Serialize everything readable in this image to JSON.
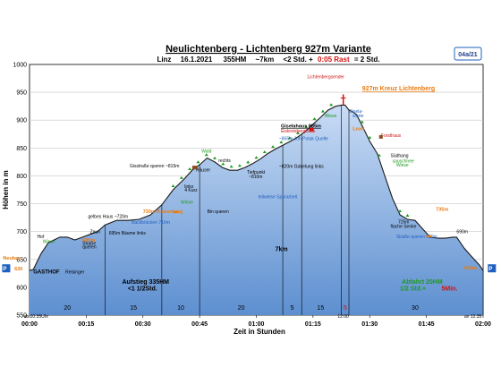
{
  "chart_data": {
    "type": "area",
    "title": "Neulichtenberg - Lichtenberg 927m Variante",
    "subtitle_parts": [
      "Linz",
      "16.1.2021",
      "355HM",
      "~7km",
      "<2 Std. +",
      "0:05 Rast",
      "= 2 Std."
    ],
    "badge": "04a/21",
    "xlabel": "Zeit in Stunden",
    "ylabel": "Höhen in m",
    "ylim": [
      550,
      1000
    ],
    "xlim_minutes": [
      0,
      120
    ],
    "y_ticks": [
      "550",
      "600",
      "650",
      "700",
      "750",
      "800",
      "850",
      "900",
      "950",
      "1000"
    ],
    "x_ticks": [
      {
        "minute": 0,
        "label": "00:00"
      },
      {
        "minute": 15,
        "label": "00:15"
      },
      {
        "minute": 30,
        "label": "00:30"
      },
      {
        "minute": 45,
        "label": "00:45"
      },
      {
        "minute": 60,
        "label": "01:00"
      },
      {
        "minute": 75,
        "label": "01:15"
      },
      {
        "minute": 90,
        "label": "01:30"
      },
      {
        "minute": 105,
        "label": "01:45"
      },
      {
        "minute": 120,
        "label": "02:00"
      }
    ],
    "series": [
      {
        "profile": [
          [
            0,
            630
          ],
          [
            1,
            632
          ],
          [
            3,
            660
          ],
          [
            5,
            680
          ],
          [
            8,
            690
          ],
          [
            10,
            690
          ],
          [
            12,
            685
          ],
          [
            14,
            690
          ],
          [
            16,
            695
          ],
          [
            18,
            700
          ],
          [
            20,
            712
          ],
          [
            23,
            720
          ],
          [
            26,
            720
          ],
          [
            29,
            722
          ],
          [
            32,
            730
          ],
          [
            35,
            748
          ],
          [
            38,
            775
          ],
          [
            41,
            795
          ],
          [
            43,
            810
          ],
          [
            45,
            820
          ],
          [
            47,
            832
          ],
          [
            49,
            825
          ],
          [
            51,
            815
          ],
          [
            53,
            810
          ],
          [
            55,
            810
          ],
          [
            57,
            815
          ],
          [
            59,
            822
          ],
          [
            61,
            830
          ],
          [
            63,
            840
          ],
          [
            65,
            848
          ],
          [
            67,
            855
          ],
          [
            69,
            862
          ],
          [
            71,
            870
          ],
          [
            73,
            880
          ],
          [
            75,
            893
          ],
          [
            77,
            905
          ],
          [
            79,
            918
          ],
          [
            81,
            925
          ],
          [
            82.5,
            927
          ],
          [
            83.5,
            927
          ],
          [
            84.5,
            918
          ],
          [
            85.5,
            915
          ],
          [
            86.5,
            910
          ],
          [
            88,
            890
          ],
          [
            90,
            862
          ],
          [
            92,
            840
          ],
          [
            94,
            800
          ],
          [
            96,
            760
          ],
          [
            98,
            730
          ],
          [
            100,
            722
          ],
          [
            102,
            720
          ],
          [
            104,
            705
          ],
          [
            106,
            690
          ],
          [
            108,
            688
          ],
          [
            110,
            688
          ],
          [
            112,
            690
          ],
          [
            113,
            690
          ],
          [
            115,
            670
          ],
          [
            117,
            655
          ],
          [
            119,
            640
          ],
          [
            120,
            630
          ]
        ]
      }
    ],
    "vlines_minutes": [
      20,
      35,
      45,
      67,
      72,
      82.5,
      84.5,
      120
    ],
    "segment_durations": [
      {
        "label": "20",
        "minute": 10
      },
      {
        "label": "15",
        "minute": 27.5
      },
      {
        "label": "10",
        "minute": 40
      },
      {
        "label": "20",
        "minute": 56
      },
      {
        "label": "5",
        "minute": 69.5
      },
      {
        "label": "15",
        "minute": 77
      },
      {
        "label": "5",
        "minute": 83.5
      },
      {
        "label": "30",
        "minute": 102
      }
    ],
    "annotations": [
      {
        "text": "Hof",
        "m": 2.0,
        "y": 688,
        "style": "n"
      },
      {
        "text": "Wiese",
        "m": 3.5,
        "y": 679,
        "style": "g"
      },
      {
        "text": "GASTHOF",
        "m": 1.0,
        "y": 625,
        "style": "b"
      },
      {
        "text": "Reisinger",
        "m": 9.5,
        "y": 625,
        "style": "n"
      },
      {
        "text": "630",
        "m": -4.0,
        "y": 630,
        "style": "o"
      },
      {
        "text": "Neubau",
        "m": -7.0,
        "y": 650,
        "style": "o"
      },
      {
        "text": "685m",
        "m": 14.0,
        "y": 682,
        "style": "o"
      },
      {
        "text": "Zaun",
        "m": 16.0,
        "y": 697,
        "style": "n"
      },
      {
        "text": "Straße",
        "m": 14.0,
        "y": 676,
        "style": "n"
      },
      {
        "text": "queren",
        "m": 14.0,
        "y": 670,
        "style": "n"
      },
      {
        "text": "695m Bäume links",
        "m": 21.0,
        "y": 695,
        "style": "n"
      },
      {
        "text": "gelbes Haus ~720m",
        "m": 15.5,
        "y": 724,
        "style": "n"
      },
      {
        "text": "730m Kaiserberg",
        "m": 30.0,
        "y": 733,
        "style": "o"
      },
      {
        "text": "Bin queren",
        "m": 47.0,
        "y": 733,
        "style": "n"
      },
      {
        "text": "Backbrücken 716m",
        "m": 27.0,
        "y": 714,
        "style": "bl"
      },
      {
        "text": "Wiese",
        "m": 40.0,
        "y": 750,
        "style": "g"
      },
      {
        "text": "links",
        "m": 41.0,
        "y": 778,
        "style": "n"
      },
      {
        "text": "4 Kurz",
        "m": 41.0,
        "y": 772,
        "style": "n"
      },
      {
        "text": "Gisstraße queren ~815m",
        "m": 26.5,
        "y": 815,
        "style": "n"
      },
      {
        "text": "Häuser",
        "m": 44.0,
        "y": 808,
        "style": "n"
      },
      {
        "text": "Wald",
        "m": 45.5,
        "y": 842,
        "style": "g"
      },
      {
        "text": "rechts",
        "m": 50.0,
        "y": 825,
        "style": "n"
      },
      {
        "text": "Tiefpunkt",
        "m": 57.5,
        "y": 804,
        "style": "n"
      },
      {
        "text": "~810m",
        "m": 58.0,
        "y": 796,
        "style": "n"
      },
      {
        "text": "~820m Gabelung links",
        "m": 66.0,
        "y": 814,
        "style": "n"
      },
      {
        "text": "~865m Joh Potak Quelle",
        "m": 66.0,
        "y": 864,
        "style": "bl"
      },
      {
        "text": "teilweise Spurarbeit",
        "m": 60.5,
        "y": 760,
        "style": "bl"
      },
      {
        "text": "Giselahaus 885m",
        "m": 66.5,
        "y": 887,
        "style": "bu"
      },
      {
        "text": "Eiskreisberghaus",
        "m": 66.5,
        "y": 878,
        "style": "r"
      },
      {
        "text": "Wiese",
        "m": 78.0,
        "y": 905,
        "style": "g"
      },
      {
        "text": "Gisela-",
        "m": 84.5,
        "y": 913,
        "style": "bl"
      },
      {
        "text": "warte",
        "m": 85.5,
        "y": 905,
        "style": "bl"
      },
      {
        "text": "Lichtenbergsender",
        "m": 73.5,
        "y": 975,
        "style": "r"
      },
      {
        "text": "927m Kreuz Lichtenberg",
        "m": 88.0,
        "y": 953,
        "style": "ob"
      },
      {
        "text": "Loxit",
        "m": 85.5,
        "y": 882,
        "style": "o"
      },
      {
        "text": "Forsthaus",
        "m": 93.0,
        "y": 870,
        "style": "r"
      },
      {
        "text": "Südhang",
        "m": 95.5,
        "y": 834,
        "style": "n"
      },
      {
        "text": "sauschnee",
        "m": 96.0,
        "y": 824,
        "style": "g"
      },
      {
        "text": "Wiese",
        "m": 97.0,
        "y": 817,
        "style": "g"
      },
      {
        "text": "735m",
        "m": 107.5,
        "y": 737,
        "style": "o"
      },
      {
        "text": "725m",
        "m": 97.5,
        "y": 715,
        "style": "n"
      },
      {
        "text": "flache Senke",
        "m": 95.5,
        "y": 707,
        "style": "n"
      },
      {
        "text": "Straße queren 690m",
        "m": 97.0,
        "y": 688,
        "style": "bl"
      },
      {
        "text": "690m",
        "m": 113.0,
        "y": 697,
        "style": "n"
      },
      {
        "text": "630m",
        "m": 115.0,
        "y": 632,
        "style": "o"
      },
      {
        "text": "7km",
        "m": 65.0,
        "y": 665,
        "style": "bb"
      },
      {
        "text": "Aufstieg 335HM",
        "m": 24.5,
        "y": 606,
        "style": "bb"
      },
      {
        "text": "<1 1/2Std.",
        "m": 26.0,
        "y": 594,
        "style": "bb"
      },
      {
        "text": "Abfahrt 20HM",
        "m": 98.5,
        "y": 606,
        "style": "gb"
      },
      {
        "text": "1/2 Std.+",
        "m": 98.0,
        "y": 594,
        "style": "gb"
      },
      {
        "text": "5Min.",
        "m": 109.0,
        "y": 594,
        "style": "rb"
      },
      {
        "text": "ab 10:35Uhr",
        "m": -1.5,
        "y": 545,
        "style": "n"
      },
      {
        "text": "an 12:35",
        "m": 115.0,
        "y": 545,
        "style": "n"
      },
      {
        "text": "12:00",
        "m": 81.5,
        "y": 545,
        "style": "n"
      },
      {
        "text": "P",
        "m": -7.0,
        "y": 630,
        "style": "pb"
      },
      {
        "text": "P",
        "m": 121.5,
        "y": 630,
        "style": "pb"
      }
    ],
    "colors": {
      "fill_top": "#c9dcf5",
      "fill_bottom": "#5d8fd0",
      "line": "#1a1a1a",
      "orange": "#e87a10",
      "green": "#1d9a1d",
      "blue": "#1f5fbf",
      "red": "#d01010"
    }
  }
}
